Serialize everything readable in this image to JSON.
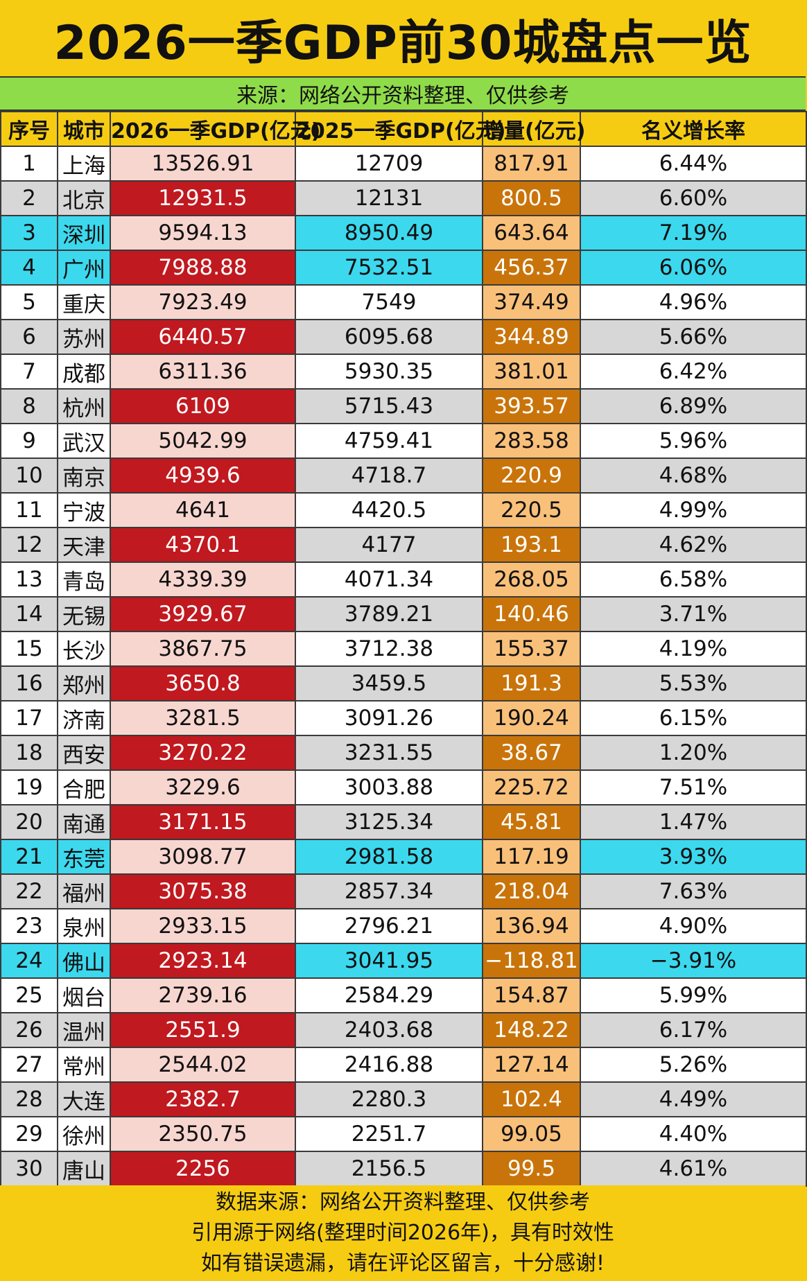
{
  "title": "2026一季GDP前30城盘点一览",
  "source_line": "来源：网络公开资料整理、仅供参考",
  "chart_data": {
    "type": "table",
    "columns": [
      "序号",
      "城市",
      "2026一季GDP(亿元)",
      "2025一季GDP(亿元)",
      "增量(亿元)",
      "名义增长率"
    ],
    "rows": [
      [
        "1",
        "上海",
        "13526.91",
        "12709",
        "817.91",
        "6.44%"
      ],
      [
        "2",
        "北京",
        "12931.5",
        "12131",
        "800.5",
        "6.60%"
      ],
      [
        "3",
        "深圳",
        "9594.13",
        "8950.49",
        "643.64",
        "7.19%"
      ],
      [
        "4",
        "广州",
        "7988.88",
        "7532.51",
        "456.37",
        "6.06%"
      ],
      [
        "5",
        "重庆",
        "7923.49",
        "7549",
        "374.49",
        "4.96%"
      ],
      [
        "6",
        "苏州",
        "6440.57",
        "6095.68",
        "344.89",
        "5.66%"
      ],
      [
        "7",
        "成都",
        "6311.36",
        "5930.35",
        "381.01",
        "6.42%"
      ],
      [
        "8",
        "杭州",
        "6109",
        "5715.43",
        "393.57",
        "6.89%"
      ],
      [
        "9",
        "武汉",
        "5042.99",
        "4759.41",
        "283.58",
        "5.96%"
      ],
      [
        "10",
        "南京",
        "4939.6",
        "4718.7",
        "220.9",
        "4.68%"
      ],
      [
        "11",
        "宁波",
        "4641",
        "4420.5",
        "220.5",
        "4.99%"
      ],
      [
        "12",
        "天津",
        "4370.1",
        "4177",
        "193.1",
        "4.62%"
      ],
      [
        "13",
        "青岛",
        "4339.39",
        "4071.34",
        "268.05",
        "6.58%"
      ],
      [
        "14",
        "无锡",
        "3929.67",
        "3789.21",
        "140.46",
        "3.71%"
      ],
      [
        "15",
        "长沙",
        "3867.75",
        "3712.38",
        "155.37",
        "4.19%"
      ],
      [
        "16",
        "郑州",
        "3650.8",
        "3459.5",
        "191.3",
        "5.53%"
      ],
      [
        "17",
        "济南",
        "3281.5",
        "3091.26",
        "190.24",
        "6.15%"
      ],
      [
        "18",
        "西安",
        "3270.22",
        "3231.55",
        "38.67",
        "1.20%"
      ],
      [
        "19",
        "合肥",
        "3229.6",
        "3003.88",
        "225.72",
        "7.51%"
      ],
      [
        "20",
        "南通",
        "3171.15",
        "3125.34",
        "45.81",
        "1.47%"
      ],
      [
        "21",
        "东莞",
        "3098.77",
        "2981.58",
        "117.19",
        "3.93%"
      ],
      [
        "22",
        "福州",
        "3075.38",
        "2857.34",
        "218.04",
        "7.63%"
      ],
      [
        "23",
        "泉州",
        "2933.15",
        "2796.21",
        "136.94",
        "4.90%"
      ],
      [
        "24",
        "佛山",
        "2923.14",
        "3041.95",
        "−118.81",
        "−3.91%"
      ],
      [
        "25",
        "烟台",
        "2739.16",
        "2584.29",
        "154.87",
        "5.99%"
      ],
      [
        "26",
        "温州",
        "2551.9",
        "2403.68",
        "148.22",
        "6.17%"
      ],
      [
        "27",
        "常州",
        "2544.02",
        "2416.88",
        "127.14",
        "5.26%"
      ],
      [
        "28",
        "大连",
        "2382.7",
        "2280.3",
        "102.4",
        "4.49%"
      ],
      [
        "29",
        "徐州",
        "2350.75",
        "2251.7",
        "99.05",
        "4.40%"
      ],
      [
        "30",
        "唐山",
        "2256",
        "2156.5",
        "99.5",
        "4.61%"
      ]
    ],
    "highlighted_rows": [
      "3",
      "4",
      "21",
      "24"
    ]
  },
  "footer": {
    "line1": "数据来源：网络公开资料整理、仅供参考",
    "line2": "引用源于网络(整理时间2026年)，具有时效性",
    "line3": "如有错误遗漏，请在评论区留言，十分感谢!"
  }
}
